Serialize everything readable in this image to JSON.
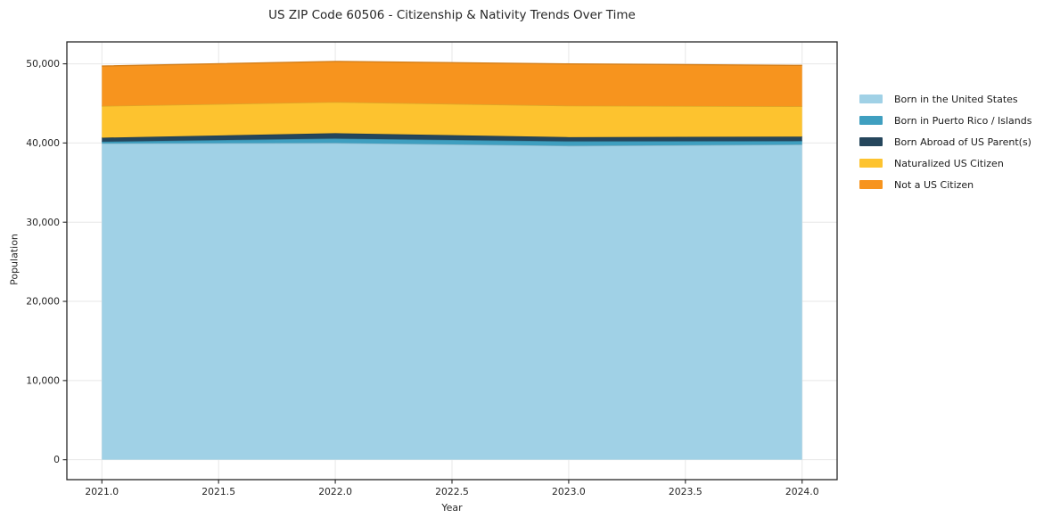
{
  "title": "US ZIP Code 60506 - Citizenship & Nativity Trends Over Time",
  "chart_data": {
    "type": "area",
    "stacked": true,
    "title": "US ZIP Code 60506 - Citizenship & Nativity Trends Over Time",
    "xlabel": "Year",
    "ylabel": "Population",
    "x": [
      2021,
      2022,
      2023,
      2024
    ],
    "series": [
      {
        "name": "Born in the United States",
        "color": "#a0d1e6",
        "values": [
          39950,
          40000,
          39650,
          39800
        ]
      },
      {
        "name": "Born in Puerto Rico / Islands",
        "color": "#3f9fc0",
        "values": [
          220,
          560,
          560,
          450
        ]
      },
      {
        "name": "Born Abroad of US Parent(s)",
        "color": "#25465c",
        "values": [
          500,
          680,
          530,
          560
        ]
      },
      {
        "name": "Naturalized US Citizen",
        "color": "#fdc32f",
        "values": [
          4000,
          3930,
          3970,
          3820
        ]
      },
      {
        "name": "Not a US Citizen",
        "color": "#f7941e",
        "values": [
          5050,
          5130,
          5280,
          5170
        ]
      }
    ],
    "totals": [
      49720,
      50300,
      49990,
      49800
    ],
    "xlim": [
      2020.85,
      2024.15
    ],
    "ylim": [
      -2513,
      52767
    ],
    "xticks": [
      2021.0,
      2021.5,
      2022.0,
      2022.5,
      2023.0,
      2023.5,
      2024.0
    ],
    "xtick_labels": [
      "2021.0",
      "2021.5",
      "2022.0",
      "2022.5",
      "2023.0",
      "2023.5",
      "2024.0"
    ],
    "yticks": [
      0,
      10000,
      20000,
      30000,
      40000,
      50000
    ],
    "ytick_labels": [
      "0",
      "10,000",
      "20,000",
      "30,000",
      "40,000",
      "50,000"
    ],
    "grid": true,
    "grid_color": "#e7e7e7",
    "frame_color": "#262626",
    "legend_position": "right-outside"
  }
}
